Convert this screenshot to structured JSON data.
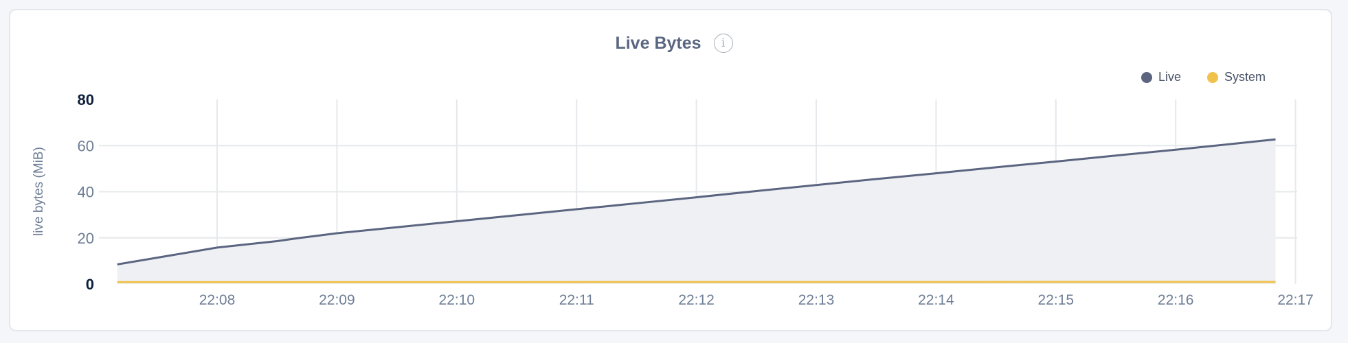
{
  "chart_data": {
    "type": "area",
    "title": "Live Bytes",
    "ylabel": "live bytes (MiB)",
    "xlabel": "",
    "ylim": [
      0,
      80
    ],
    "yticks": [
      "0",
      "20",
      "40",
      "60",
      "80"
    ],
    "xlim": [
      "22:07:00",
      "22:17:00"
    ],
    "xticks": [
      "22:08",
      "22:09",
      "22:10",
      "22:11",
      "22:12",
      "22:13",
      "22:14",
      "22:15",
      "22:16",
      "22:17"
    ],
    "grid": true,
    "legend_position": "top-right",
    "series": [
      {
        "name": "Live",
        "color": "#5b6580",
        "fill": "#eef0f4",
        "x": [
          "22:07:10",
          "22:07:32",
          "22:08:00",
          "22:08:30",
          "22:08:40",
          "22:09:00",
          "22:09:30",
          "22:10:00",
          "22:10:30",
          "22:11:00",
          "22:11:30",
          "22:12:00",
          "22:12:30",
          "22:13:00",
          "22:13:30",
          "22:14:00",
          "22:14:30",
          "22:15:00",
          "22:15:30",
          "22:16:00",
          "22:16:30",
          "22:16:50"
        ],
        "values": [
          8.5,
          11.7,
          15.8,
          18.6,
          19.8,
          22.0,
          24.6,
          27.2,
          29.8,
          32.4,
          35.0,
          37.6,
          40.3,
          42.9,
          45.5,
          48.0,
          50.6,
          53.1,
          55.7,
          58.2,
          60.9,
          62.7
        ]
      },
      {
        "name": "System",
        "color": "#f0c14b",
        "x": [
          "22:07:10",
          "22:16:50"
        ],
        "values": [
          0.8,
          0.9
        ]
      }
    ]
  },
  "info_icon": "info-icon"
}
